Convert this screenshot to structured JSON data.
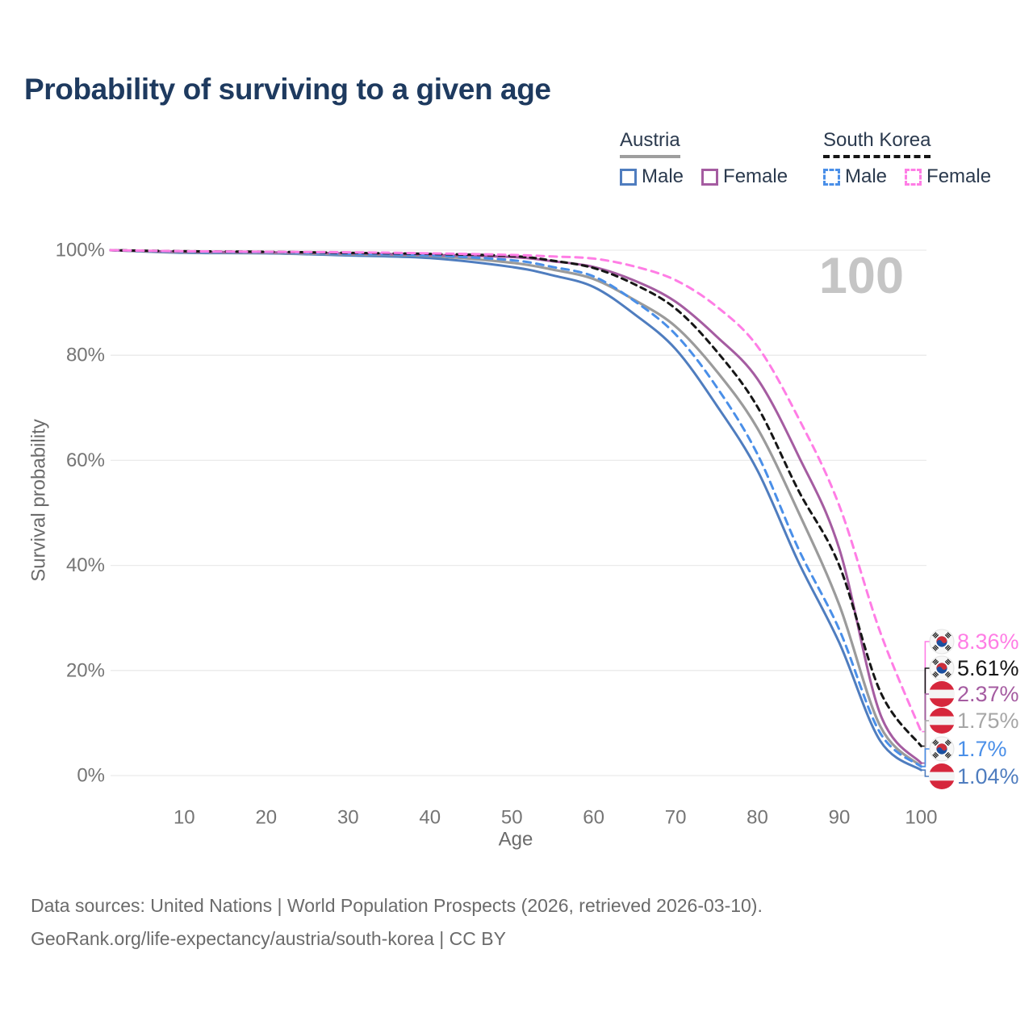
{
  "page": {
    "title": "Probability of surviving to a given age"
  },
  "legend": {
    "groups": [
      {
        "label": "Austria",
        "line_style": "solid",
        "line_color": "#9e9e9e",
        "items": [
          {
            "label": "Male",
            "color": "#4f7dbf",
            "dashed": false
          },
          {
            "label": "Female",
            "color": "#a55ca1",
            "dashed": false
          }
        ]
      },
      {
        "label": "South Korea",
        "line_style": "dashed",
        "line_color": "#161616",
        "items": [
          {
            "label": "Male",
            "color": "#4a8fe8",
            "dashed": true
          },
          {
            "label": "Female",
            "color": "#ff7de5",
            "dashed": true
          }
        ]
      }
    ]
  },
  "chart_data": {
    "type": "line",
    "title": "Probability of surviving to a given age",
    "xlabel": "Age",
    "ylabel": "Survival probability",
    "xlim": [
      1,
      100
    ],
    "ylim": [
      0,
      100
    ],
    "grid": "horizontal",
    "watermark": "100",
    "x_ticks": [
      "10",
      "20",
      "30",
      "40",
      "50",
      "60",
      "70",
      "80",
      "90",
      "100"
    ],
    "y_ticks": [
      "0%",
      "20%",
      "40%",
      "60%",
      "80%",
      "100%"
    ],
    "series": [
      {
        "id": "austria-male",
        "name": "Austria Male",
        "country": "Austria",
        "sex": "Male",
        "color": "#4f7dbf",
        "width": 3,
        "dash": null,
        "points": [
          [
            1,
            100
          ],
          [
            10,
            99.5
          ],
          [
            20,
            99.4
          ],
          [
            30,
            99.0
          ],
          [
            40,
            98.5
          ],
          [
            50,
            96.8
          ],
          [
            55,
            95.2
          ],
          [
            60,
            93.0
          ],
          [
            65,
            87.8
          ],
          [
            70,
            81.2
          ],
          [
            75,
            70.5
          ],
          [
            80,
            58.1
          ],
          [
            85,
            40.7
          ],
          [
            90,
            25.3
          ],
          [
            95,
            6.6
          ],
          [
            100,
            1.04
          ]
        ]
      },
      {
        "id": "austria-total",
        "name": "Austria Total",
        "country": "Austria",
        "sex": "Both",
        "color": "#9b9b9b",
        "width": 3.2,
        "dash": null,
        "points": [
          [
            1,
            100
          ],
          [
            10,
            99.6
          ],
          [
            20,
            99.5
          ],
          [
            30,
            99.2
          ],
          [
            40,
            98.9
          ],
          [
            50,
            97.6
          ],
          [
            55,
            96.3
          ],
          [
            60,
            94.5
          ],
          [
            65,
            90.5
          ],
          [
            70,
            85.5
          ],
          [
            75,
            77.0
          ],
          [
            80,
            66.1
          ],
          [
            85,
            50.2
          ],
          [
            90,
            32.5
          ],
          [
            95,
            9.4
          ],
          [
            100,
            1.75
          ]
        ]
      },
      {
        "id": "austria-female",
        "name": "Austria Female",
        "country": "Austria",
        "sex": "Female",
        "color": "#a55ca1",
        "width": 3,
        "dash": null,
        "points": [
          [
            1,
            100
          ],
          [
            10,
            99.7
          ],
          [
            20,
            99.6
          ],
          [
            30,
            99.4
          ],
          [
            40,
            99.1
          ],
          [
            50,
            98.7
          ],
          [
            55,
            97.9
          ],
          [
            60,
            96.8
          ],
          [
            65,
            94.2
          ],
          [
            70,
            90.2
          ],
          [
            75,
            83.6
          ],
          [
            80,
            75.5
          ],
          [
            85,
            60.9
          ],
          [
            90,
            43.2
          ],
          [
            95,
            11.7
          ],
          [
            100,
            2.37
          ]
        ]
      },
      {
        "id": "south-korea-male",
        "name": "South Korea Male",
        "country": "South Korea",
        "sex": "Male",
        "color": "#4a8fe8",
        "width": 3,
        "dash": "9 7",
        "points": [
          [
            1,
            100
          ],
          [
            10,
            99.7
          ],
          [
            20,
            99.6
          ],
          [
            30,
            99.3
          ],
          [
            40,
            99.0
          ],
          [
            50,
            98.1
          ],
          [
            55,
            96.8
          ],
          [
            60,
            95.0
          ],
          [
            65,
            90.3
          ],
          [
            70,
            84.0
          ],
          [
            75,
            74.0
          ],
          [
            80,
            61.2
          ],
          [
            85,
            43.2
          ],
          [
            90,
            27.8
          ],
          [
            95,
            8.1
          ],
          [
            100,
            1.7
          ]
        ]
      },
      {
        "id": "south-korea-total",
        "name": "South Korea Total",
        "country": "South Korea",
        "sex": "Both",
        "color": "#161616",
        "width": 3,
        "dash": "7 6",
        "points": [
          [
            1,
            100
          ],
          [
            10,
            99.8
          ],
          [
            20,
            99.7
          ],
          [
            30,
            99.5
          ],
          [
            40,
            99.3
          ],
          [
            50,
            98.9
          ],
          [
            55,
            98.0
          ],
          [
            60,
            96.6
          ],
          [
            65,
            93.5
          ],
          [
            70,
            88.9
          ],
          [
            75,
            80.8
          ],
          [
            80,
            70.2
          ],
          [
            85,
            54.3
          ],
          [
            90,
            40.0
          ],
          [
            95,
            16.0
          ],
          [
            100,
            5.61
          ]
        ]
      },
      {
        "id": "south-korea-female",
        "name": "South Korea Female",
        "country": "South Korea",
        "sex": "Female",
        "color": "#ff7de5",
        "width": 3,
        "dash": "9 7",
        "points": [
          [
            1,
            100
          ],
          [
            10,
            99.8
          ],
          [
            20,
            99.7
          ],
          [
            30,
            99.6
          ],
          [
            40,
            99.4
          ],
          [
            50,
            99.1
          ],
          [
            55,
            98.8
          ],
          [
            60,
            98.4
          ],
          [
            65,
            96.9
          ],
          [
            70,
            94.3
          ],
          [
            75,
            89.3
          ],
          [
            80,
            81.7
          ],
          [
            85,
            68.1
          ],
          [
            90,
            51.4
          ],
          [
            95,
            27.3
          ],
          [
            100,
            8.36
          ]
        ]
      }
    ],
    "end_labels": [
      {
        "series": "south-korea-female",
        "value": "8.36%",
        "color": "#ff7de5",
        "country": "South Korea"
      },
      {
        "series": "south-korea-total",
        "value": "5.61%",
        "color": "#161616",
        "country": "South Korea"
      },
      {
        "series": "austria-female",
        "value": "2.37%",
        "color": "#a55ca1",
        "country": "Austria"
      },
      {
        "series": "austria-total",
        "value": "1.75%",
        "color": "#a6a6a6",
        "country": "Austria"
      },
      {
        "series": "south-korea-male",
        "value": "1.7%",
        "color": "#4a8fe8",
        "country": "South Korea"
      },
      {
        "series": "austria-male",
        "value": "1.04%",
        "color": "#4f7dbf",
        "country": "Austria"
      }
    ]
  },
  "footer": {
    "line1": "Data sources: United Nations | World Population Prospects (2026, retrieved 2026-03-10).",
    "line2": "GeoRank.org/life-expectancy/austria/south-korea | CC BY"
  }
}
